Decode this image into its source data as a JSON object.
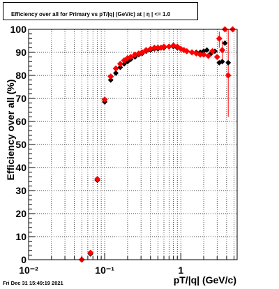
{
  "title": "Efficiency over all for Primary vs pT/|q| (GeV/c) at |  η | <= 1.0",
  "timestamp": "Fri Dec 31 15:49:19 2021",
  "chart_data": {
    "type": "scatter",
    "title": "Efficiency over all for Primary vs pT/|q| (GeV/c) at |  η | <= 1.0",
    "xlabel": "pT/|q| (GeV/c)",
    "ylabel": "Efficiency over all (%)",
    "xscale": "log",
    "xlim": [
      0.01,
      5.5
    ],
    "ylim": [
      0,
      100
    ],
    "x_tick_labels": [
      "10⁻²",
      "10⁻¹",
      "1"
    ],
    "y_tick_labels": [
      "0",
      "10",
      "20",
      "30",
      "40",
      "50",
      "60",
      "70",
      "80",
      "90",
      "100"
    ],
    "grid": true,
    "series": [
      {
        "marker": "circle",
        "color": "#000000",
        "points": [
          [
            0.065,
            2.5
          ],
          [
            0.08,
            34.5
          ],
          [
            0.1,
            68.5
          ],
          [
            0.12,
            78
          ],
          [
            0.14,
            81
          ],
          [
            0.16,
            83.5
          ],
          [
            0.18,
            85
          ],
          [
            0.2,
            86
          ],
          [
            0.22,
            87
          ],
          [
            0.25,
            88
          ],
          [
            0.28,
            89
          ],
          [
            0.31,
            89.5
          ],
          [
            0.35,
            90.5
          ],
          [
            0.4,
            91
          ],
          [
            0.45,
            91.5
          ],
          [
            0.5,
            91.5
          ],
          [
            0.55,
            92
          ],
          [
            0.6,
            92
          ],
          [
            0.7,
            92.5
          ],
          [
            0.8,
            92.5
          ],
          [
            0.9,
            92
          ],
          [
            1.0,
            91.5
          ],
          [
            1.1,
            91
          ],
          [
            1.2,
            90.5
          ],
          [
            1.4,
            90
          ],
          [
            1.6,
            90
          ],
          [
            1.8,
            90
          ],
          [
            2.0,
            90.5
          ],
          [
            2.2,
            91
          ],
          [
            2.5,
            89.5
          ],
          [
            2.8,
            90.5
          ],
          [
            3.2,
            85.5
          ],
          [
            3.5,
            86
          ],
          [
            3.8,
            94
          ],
          [
            4.2,
            85.5
          ]
        ]
      },
      {
        "marker": "diamond",
        "color": "#ff0000",
        "points": [
          [
            0.05,
            0
          ],
          [
            0.065,
            3
          ],
          [
            0.08,
            35
          ],
          [
            0.1,
            69.5
          ],
          [
            0.12,
            79.5
          ],
          [
            0.14,
            83
          ],
          [
            0.16,
            85
          ],
          [
            0.18,
            86.5
          ],
          [
            0.2,
            87.5
          ],
          [
            0.22,
            88
          ],
          [
            0.25,
            89
          ],
          [
            0.28,
            89.5
          ],
          [
            0.31,
            90
          ],
          [
            0.35,
            91
          ],
          [
            0.4,
            91.5
          ],
          [
            0.45,
            92
          ],
          [
            0.5,
            92
          ],
          [
            0.55,
            92
          ],
          [
            0.6,
            92.5
          ],
          [
            0.7,
            92.5
          ],
          [
            0.8,
            93
          ],
          [
            0.9,
            92.5
          ],
          [
            1.0,
            91.5
          ],
          [
            1.1,
            91
          ],
          [
            1.2,
            90.5
          ],
          [
            1.4,
            90
          ],
          [
            1.6,
            89.5
          ],
          [
            1.8,
            89
          ],
          [
            2.0,
            89
          ],
          [
            2.3,
            88.5
          ],
          [
            2.6,
            90.5
          ],
          [
            3.0,
            88
          ],
          [
            3.2,
            96
          ],
          [
            3.5,
            91
          ],
          [
            3.8,
            100
          ],
          [
            4.2,
            80
          ],
          [
            4.8,
            100
          ]
        ],
        "error_bars": [
          {
            "x": 3.2,
            "low": 92,
            "high": 99
          },
          {
            "x": 3.5,
            "low": 87,
            "high": 95
          },
          {
            "x": 4.2,
            "low": 62,
            "high": 100
          }
        ]
      }
    ]
  }
}
